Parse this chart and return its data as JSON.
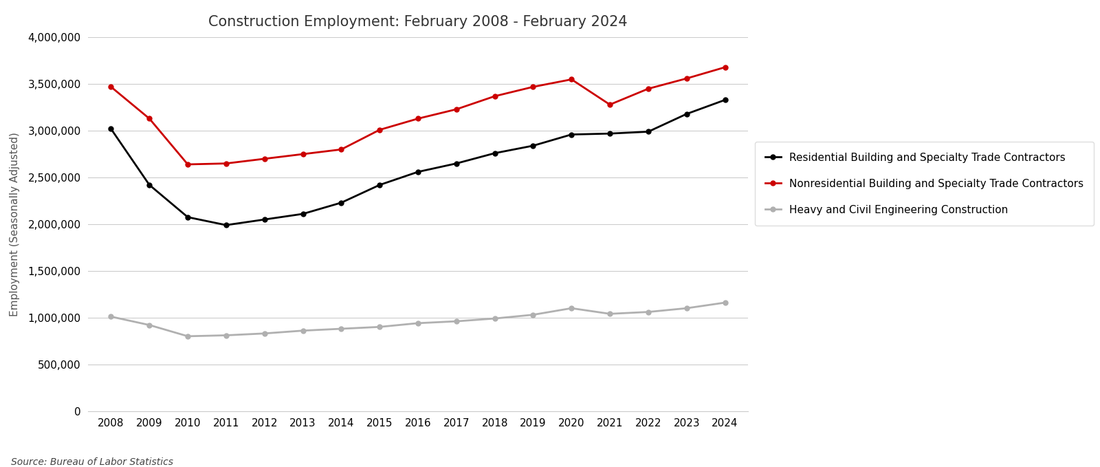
{
  "title": "Construction Employment: February 2008 - February 2024",
  "ylabel": "Employment (Seasonally Adjusted)",
  "years": [
    2008,
    2009,
    2010,
    2011,
    2012,
    2013,
    2014,
    2015,
    2016,
    2017,
    2018,
    2019,
    2020,
    2021,
    2022,
    2023,
    2024
  ],
  "residential": [
    3020000,
    2420000,
    2075000,
    1990000,
    2050000,
    2110000,
    2230000,
    2420000,
    2560000,
    2650000,
    2760000,
    2840000,
    2960000,
    2970000,
    2990000,
    3180000,
    3330000
  ],
  "nonresidential": [
    3470000,
    3130000,
    2640000,
    2650000,
    2700000,
    2750000,
    2800000,
    3010000,
    3130000,
    3230000,
    3370000,
    3470000,
    3550000,
    3280000,
    3450000,
    3560000,
    3680000
  ],
  "heavy_civil": [
    1010000,
    920000,
    800000,
    810000,
    830000,
    860000,
    880000,
    900000,
    940000,
    960000,
    990000,
    1030000,
    1100000,
    1040000,
    1060000,
    1100000,
    1160000
  ],
  "residential_color": "#000000",
  "nonresidential_color": "#cc0000",
  "heavy_civil_color": "#b0b0b0",
  "ylim": [
    0,
    4000000
  ],
  "yticks": [
    0,
    500000,
    1000000,
    1500000,
    2000000,
    2500000,
    3000000,
    3500000,
    4000000
  ],
  "source_text": "Source: Bureau of Labor Statistics",
  "grid_color": "#cccccc",
  "legend_labels": [
    "Residential Building and Specialty Trade Contractors",
    "Nonresidential Building and Specialty Trade Contractors",
    "Heavy and Civil Engineering Construction"
  ],
  "title_fontsize": 15,
  "axis_label_fontsize": 11,
  "tick_fontsize": 11,
  "legend_fontsize": 11,
  "source_fontsize": 10,
  "marker_size": 5,
  "line_width": 2.0
}
